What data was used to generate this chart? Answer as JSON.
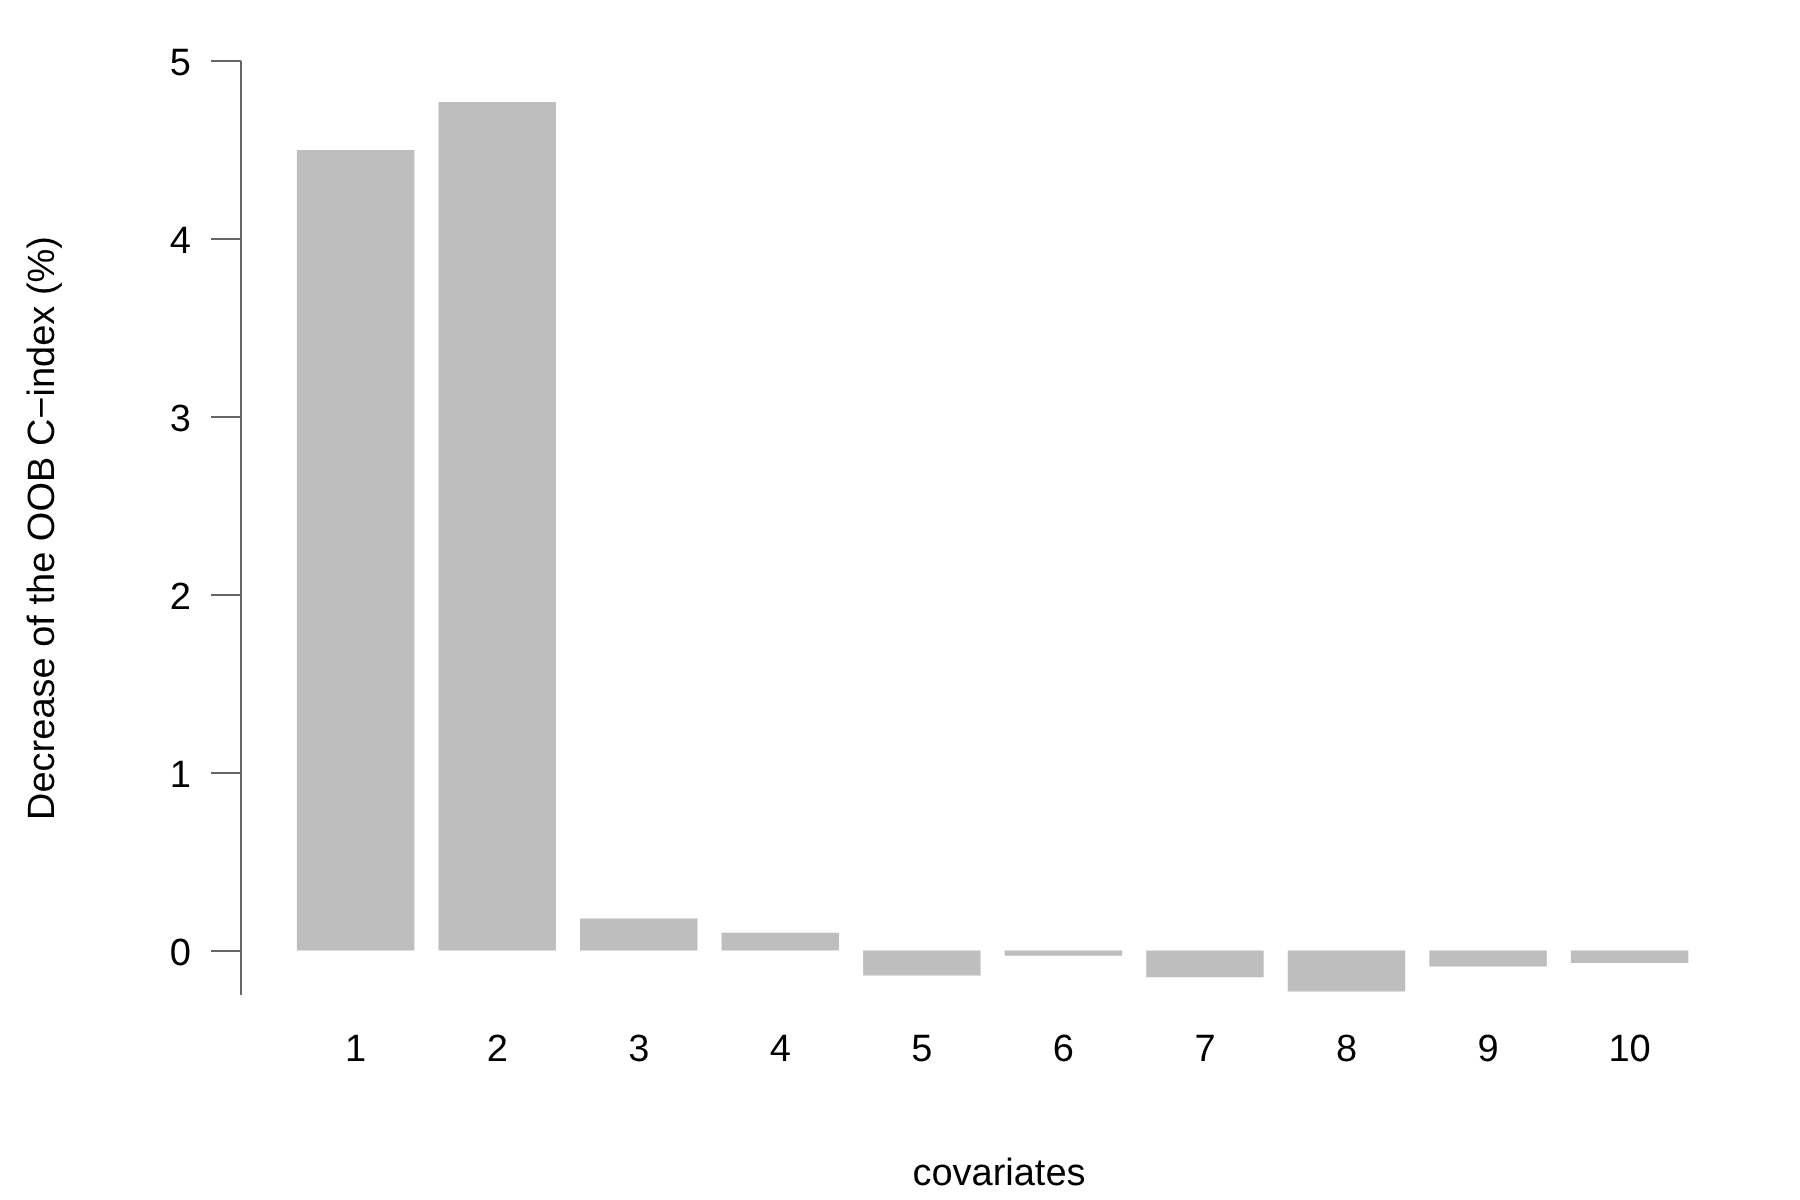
{
  "chart_data": {
    "type": "bar",
    "xlabel": "covariates",
    "ylabel": "Decrease of the OOB C−index (%)",
    "categories": [
      "1",
      "2",
      "3",
      "4",
      "5",
      "6",
      "7",
      "8",
      "9",
      "10"
    ],
    "values": [
      4.5,
      4.77,
      0.18,
      0.1,
      -0.14,
      -0.03,
      -0.15,
      -0.23,
      -0.09,
      -0.07
    ],
    "color": "#bebebe",
    "ylim": [
      -0.25,
      5
    ],
    "yticks": [
      0,
      1,
      2,
      3,
      4,
      5
    ]
  }
}
